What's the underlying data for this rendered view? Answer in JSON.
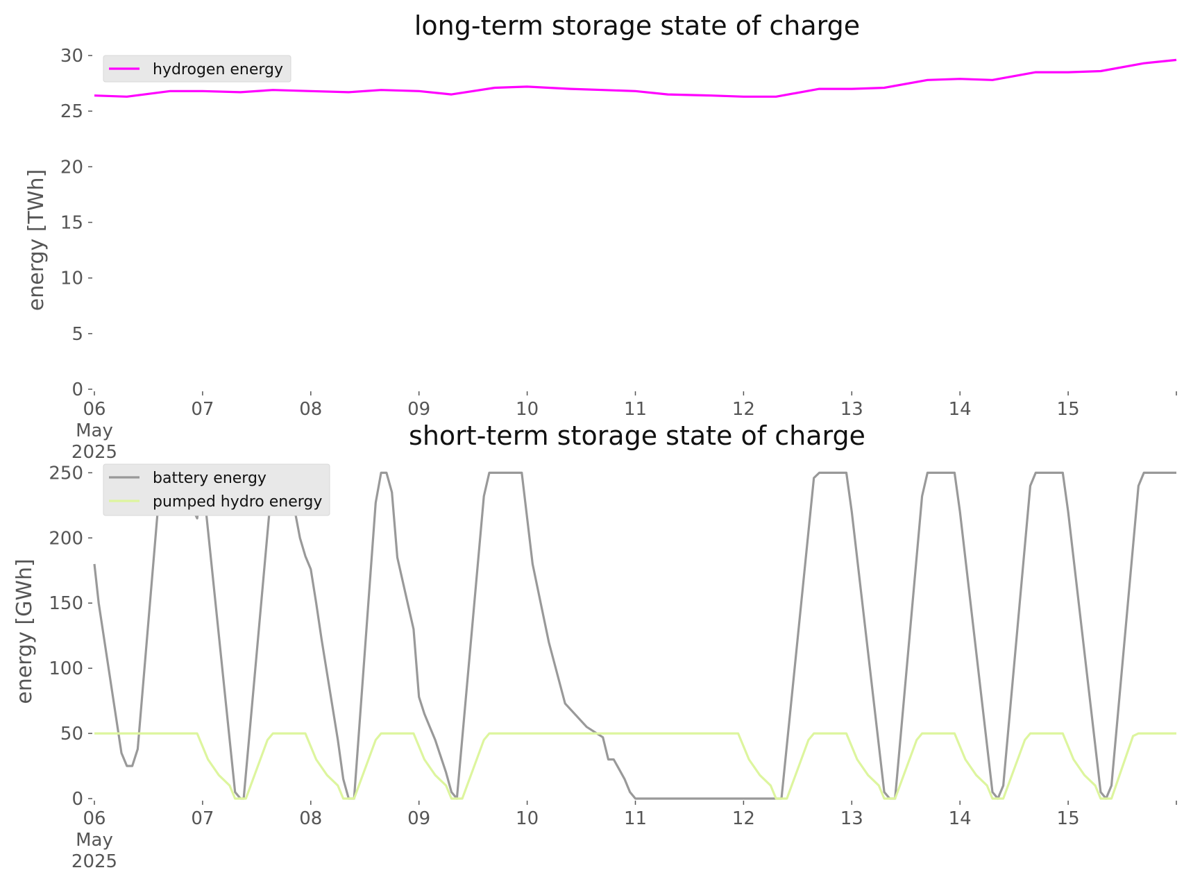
{
  "chart_data": [
    {
      "type": "line",
      "title": "long-term storage state of charge",
      "xlabel": "",
      "ylabel": "energy [TWh]",
      "ylim": [
        0,
        30.5
      ],
      "xlim_days": [
        0,
        10
      ],
      "y_ticks": [
        0,
        5,
        10,
        15,
        20,
        25,
        30
      ],
      "x_tick_labels": [
        "06\nMay\n2025",
        "07",
        "08",
        "09",
        "10",
        "11",
        "12",
        "13",
        "14",
        "15",
        ""
      ],
      "grid": false,
      "legend": "top-left",
      "series": [
        {
          "name": "hydrogen energy",
          "color": "#ff00ff",
          "x": [
            0,
            0.3,
            0.7,
            1.0,
            1.35,
            1.65,
            2.0,
            2.35,
            2.65,
            3.0,
            3.3,
            3.7,
            4.0,
            4.4,
            4.7,
            5.0,
            5.3,
            5.7,
            6.0,
            6.3,
            6.7,
            7.0,
            7.3,
            7.7,
            8.0,
            8.3,
            8.7,
            9.0,
            9.3,
            9.7,
            10.0
          ],
          "y": [
            26.4,
            26.3,
            26.8,
            26.8,
            26.7,
            26.9,
            26.8,
            26.7,
            26.9,
            26.8,
            26.5,
            27.1,
            27.2,
            27.0,
            26.9,
            26.8,
            26.5,
            26.4,
            26.3,
            26.3,
            27.0,
            27.0,
            27.1,
            27.8,
            27.9,
            27.8,
            28.5,
            28.5,
            28.6,
            29.3,
            29.6
          ]
        }
      ]
    },
    {
      "type": "line",
      "title": "short-term storage state of charge",
      "xlabel": "",
      "ylabel": "energy [GWh]",
      "ylim": [
        0,
        255
      ],
      "xlim_days": [
        0,
        10
      ],
      "y_ticks": [
        0,
        50,
        100,
        150,
        200,
        250
      ],
      "x_tick_labels": [
        "06\nMay\n2025",
        "07",
        "08",
        "09",
        "10",
        "11",
        "12",
        "13",
        "14",
        "15",
        ""
      ],
      "grid": false,
      "legend": "top-left",
      "series": [
        {
          "name": "battery energy",
          "color": "#999999",
          "x": [
            0,
            0.04,
            0.25,
            0.3,
            0.35,
            0.4,
            0.6,
            0.65,
            0.85,
            0.95,
            1.0,
            1.3,
            1.35,
            1.38,
            1.65,
            1.7,
            1.75,
            1.8,
            1.9,
            1.95,
            2.0,
            2.05,
            2.1,
            2.25,
            2.3,
            2.35,
            2.4,
            2.6,
            2.65,
            2.7,
            2.75,
            2.8,
            2.95,
            3.0,
            3.05,
            3.1,
            3.15,
            3.25,
            3.3,
            3.35,
            3.6,
            3.65,
            3.7,
            3.95,
            4.0,
            4.05,
            4.2,
            4.35,
            4.55,
            4.7,
            4.75,
            4.8,
            4.9,
            4.95,
            5.0,
            5.1,
            5.5,
            5.8,
            6.0,
            6.2,
            6.35,
            6.65,
            6.7,
            6.75,
            6.9,
            6.95,
            7.0,
            7.3,
            7.35,
            7.4,
            7.65,
            7.7,
            7.75,
            7.95,
            8.0,
            8.3,
            8.35,
            8.4,
            8.65,
            8.7,
            8.75,
            8.95,
            9.0,
            9.3,
            9.35,
            9.4,
            9.65,
            9.7,
            9.75,
            9.95,
            10.0
          ],
          "y": [
            180,
            150,
            35,
            25,
            25,
            38,
            235,
            250,
            232,
            215,
            246,
            5,
            0,
            0,
            250,
            250,
            250,
            244,
            200,
            186,
            176,
            150,
            122,
            45,
            15,
            0,
            0,
            227,
            250,
            250,
            235,
            185,
            130,
            78,
            65,
            55,
            45,
            20,
            5,
            0,
            232,
            250,
            250,
            250,
            215,
            180,
            120,
            73,
            55,
            47,
            30,
            30,
            15,
            5,
            0,
            0,
            0,
            0,
            0,
            0,
            0,
            246,
            250,
            250,
            250,
            250,
            220,
            5,
            0,
            0,
            232,
            250,
            250,
            250,
            220,
            5,
            0,
            10,
            240,
            250,
            250,
            250,
            220,
            5,
            0,
            10,
            240,
            250,
            250,
            250,
            250
          ]
        },
        {
          "name": "pumped hydro energy",
          "color": "#ddf59e",
          "x": [
            0,
            0.95,
            1.05,
            1.15,
            1.25,
            1.3,
            1.4,
            1.6,
            1.65,
            1.95,
            2.05,
            2.15,
            2.25,
            2.3,
            2.4,
            2.6,
            2.65,
            2.95,
            3.05,
            3.15,
            3.25,
            3.3,
            3.4,
            3.6,
            3.65,
            5.95,
            6.05,
            6.15,
            6.25,
            6.3,
            6.4,
            6.6,
            6.65,
            6.95,
            7.05,
            7.15,
            7.25,
            7.3,
            7.4,
            7.6,
            7.65,
            7.95,
            8.05,
            8.15,
            8.25,
            8.3,
            8.4,
            8.6,
            8.65,
            8.95,
            9.05,
            9.15,
            9.25,
            9.3,
            9.4,
            9.6,
            9.65,
            10.0
          ],
          "y": [
            50,
            50,
            30,
            18,
            10,
            0,
            0,
            45,
            50,
            50,
            30,
            18,
            10,
            0,
            0,
            45,
            50,
            50,
            30,
            18,
            10,
            0,
            0,
            45,
            50,
            50,
            30,
            18,
            10,
            0,
            0,
            45,
            50,
            50,
            30,
            18,
            10,
            0,
            0,
            45,
            50,
            50,
            30,
            18,
            10,
            0,
            0,
            45,
            50,
            50,
            30,
            18,
            10,
            0,
            0,
            48,
            50,
            50
          ]
        }
      ]
    }
  ]
}
